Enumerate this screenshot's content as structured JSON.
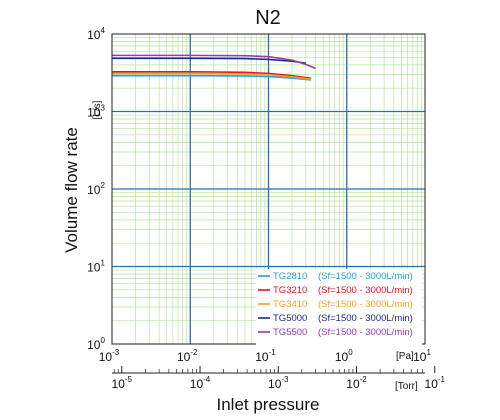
{
  "chart_data": {
    "type": "line",
    "title": "N2",
    "xlabel": "Inlet pressure",
    "ylabel": "Volume flow rate",
    "y_unit": "[L/s]",
    "x_unit_primary": "[Pa]",
    "x_unit_secondary": "[Torr]",
    "x_scale": "log",
    "y_scale": "log",
    "xlim": [
      0.001,
      10
    ],
    "ylim": [
      1,
      10000
    ],
    "grid": true,
    "legend_position": "bottom-right",
    "x_ticks_primary": [
      {
        "base": "10",
        "exp": "-3"
      },
      {
        "base": "10",
        "exp": "-2"
      },
      {
        "base": "10",
        "exp": "-1"
      },
      {
        "base": "10",
        "exp": "0"
      },
      {
        "base": "10",
        "exp": "1"
      }
    ],
    "x_ticks_secondary": [
      {
        "base": "10",
        "exp": "-5"
      },
      {
        "base": "10",
        "exp": "-4"
      },
      {
        "base": "10",
        "exp": "-3"
      },
      {
        "base": "10",
        "exp": "-2"
      },
      {
        "base": "10",
        "exp": "-1"
      }
    ],
    "y_ticks": [
      {
        "base": "10",
        "exp": "0"
      },
      {
        "base": "10",
        "exp": "1"
      },
      {
        "base": "10",
        "exp": "2"
      },
      {
        "base": "10",
        "exp": "3"
      },
      {
        "base": "10",
        "exp": "4"
      }
    ],
    "series": [
      {
        "name": "TG2810",
        "range": "(Sf=1500 - 3000L/min)",
        "color": "#1fa3d8",
        "points": [
          [
            0.001,
            2900
          ],
          [
            0.01,
            2900
          ],
          [
            0.05,
            2880
          ],
          [
            0.1,
            2820
          ],
          [
            0.2,
            2700
          ],
          [
            0.35,
            2550
          ]
        ]
      },
      {
        "name": "TG3210",
        "range": "(Sf=1500 - 3000L/min)",
        "color": "#e8141c",
        "points": [
          [
            0.001,
            3250
          ],
          [
            0.01,
            3250
          ],
          [
            0.05,
            3200
          ],
          [
            0.1,
            3100
          ],
          [
            0.2,
            2900
          ],
          [
            0.35,
            2680
          ]
        ]
      },
      {
        "name": "TG3410",
        "range": "(Sf=1500 - 3000L/min)",
        "color": "#f5a020",
        "points": [
          [
            0.001,
            3100
          ],
          [
            0.01,
            3100
          ],
          [
            0.05,
            3060
          ],
          [
            0.1,
            2980
          ],
          [
            0.2,
            2800
          ],
          [
            0.35,
            2600
          ]
        ]
      },
      {
        "name": "TG5000",
        "range": "(Sf=1500 - 3000L/min)",
        "color": "#1c2a8c",
        "points": [
          [
            0.001,
            4850
          ],
          [
            0.01,
            4850
          ],
          [
            0.05,
            4820
          ],
          [
            0.1,
            4700
          ],
          [
            0.2,
            4450
          ],
          [
            0.3,
            4200
          ]
        ]
      },
      {
        "name": "TG5500",
        "range": "(Sf=1500 - 3000L/min)",
        "color": "#9c3aa8",
        "points": [
          [
            0.001,
            5300
          ],
          [
            0.01,
            5300
          ],
          [
            0.05,
            5250
          ],
          [
            0.1,
            5100
          ],
          [
            0.2,
            4600
          ],
          [
            0.3,
            4050
          ],
          [
            0.4,
            3600
          ]
        ]
      }
    ]
  }
}
